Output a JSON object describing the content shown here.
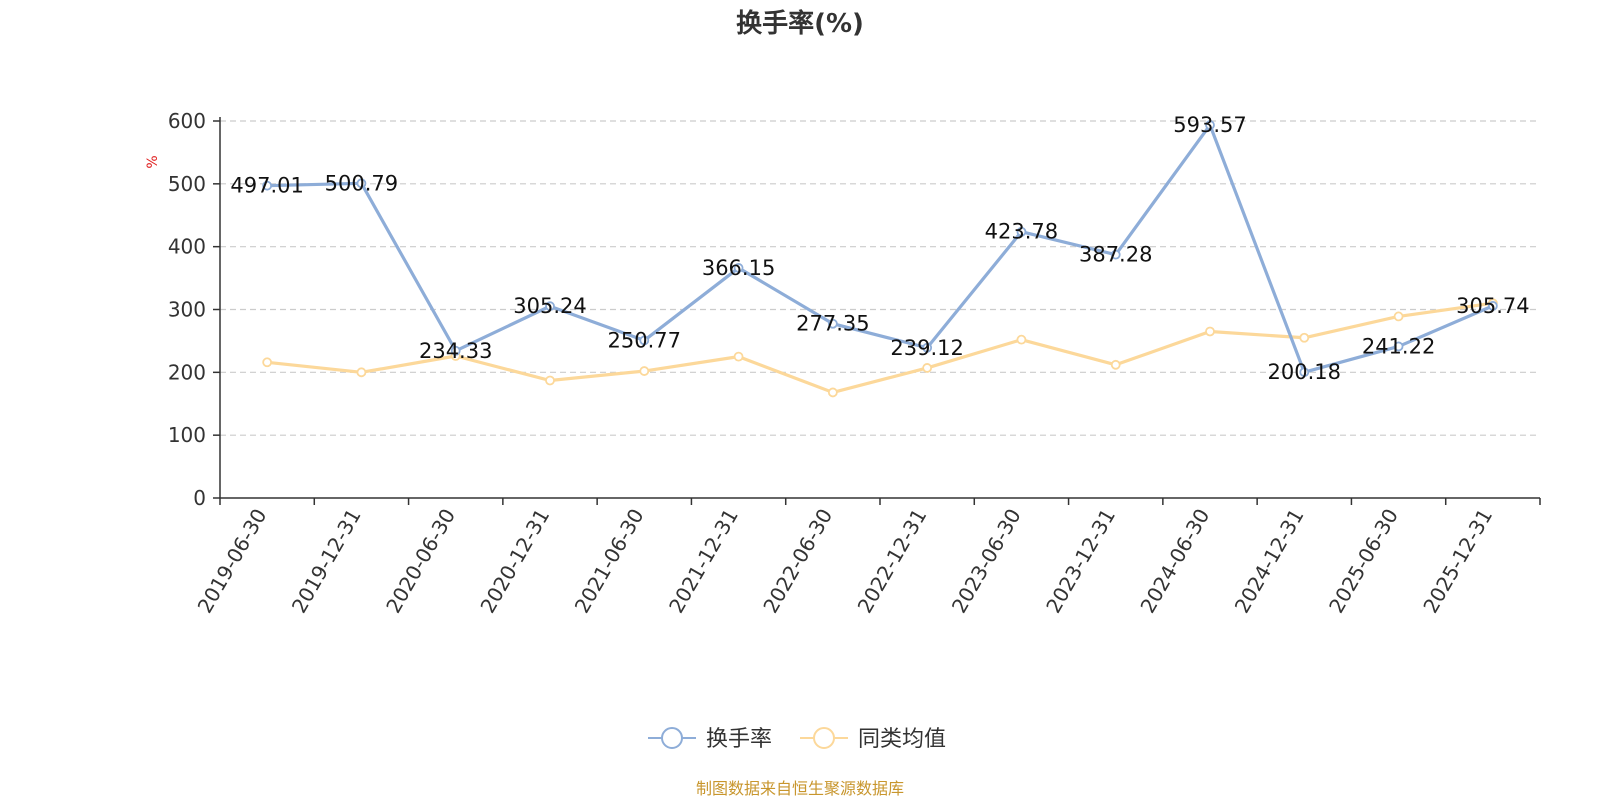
{
  "chart_data": {
    "type": "line",
    "title": "换手率(%)",
    "ylabel": "%",
    "ylim": [
      0,
      600
    ],
    "yticks": [
      0,
      100,
      200,
      300,
      400,
      500,
      600
    ],
    "grid": true,
    "legend_placement": "bottom-center",
    "categories": [
      "2019-06-30",
      "2019-12-31",
      "2020-06-30",
      "2020-12-31",
      "2021-06-30",
      "2021-12-31",
      "2022-06-30",
      "2022-12-31",
      "2023-06-30",
      "2023-12-31",
      "2024-06-30",
      "2024-12-31",
      "2025-06-30",
      "2025-12-31"
    ],
    "series": [
      {
        "name": "换手率",
        "color": "#8eadd8",
        "values": [
          497.01,
          500.79,
          234.33,
          305.24,
          250.77,
          366.15,
          277.35,
          239.12,
          423.78,
          387.28,
          593.57,
          200.18,
          241.22,
          305.74
        ],
        "labels": [
          "497.01",
          "500.79",
          "234.33",
          "305.24",
          "250.77",
          "366.15",
          "277.35",
          "239.12",
          "423.78",
          "387.28",
          "593.57",
          "200.18",
          "241.22",
          "305.74"
        ]
      },
      {
        "name": "同类均值",
        "color": "#fcd89a",
        "values": [
          216,
          200,
          226,
          187,
          202,
          225,
          168,
          207,
          252,
          212,
          265,
          255,
          289,
          310
        ]
      }
    ]
  },
  "source_text": "制图数据来自恒生聚源数据库",
  "source_color": "#c8962d",
  "axis_color": "#333333",
  "grid_color": "#cccccc"
}
